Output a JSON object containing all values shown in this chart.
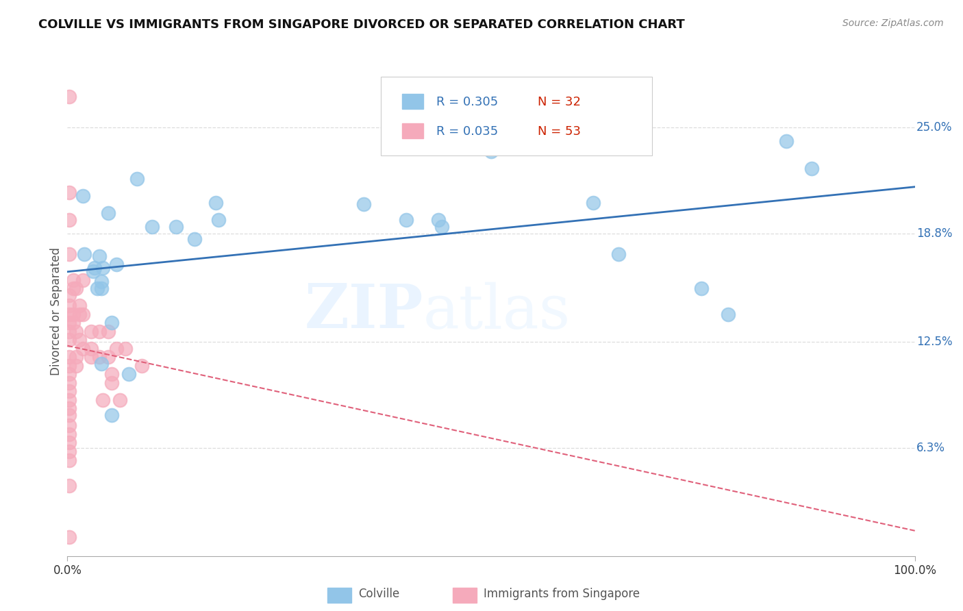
{
  "title": "COLVILLE VS IMMIGRANTS FROM SINGAPORE DIVORCED OR SEPARATED CORRELATION CHART",
  "source": "Source: ZipAtlas.com",
  "ylabel": "Divorced or Separated",
  "xlim": [
    0,
    1.0
  ],
  "ylim": [
    0,
    0.285
  ],
  "yticks": [
    0.063,
    0.125,
    0.188,
    0.25
  ],
  "ytick_labels": [
    "6.3%",
    "12.5%",
    "18.8%",
    "25.0%"
  ],
  "blue_color": "#92C5E8",
  "pink_color": "#F5AABB",
  "blue_line_color": "#3371B5",
  "pink_line_color": "#E0607A",
  "watermark_zip": "ZIP",
  "watermark_atlas": "atlas",
  "legend_blue_r": "R = 0.305",
  "legend_blue_n": "N = 32",
  "legend_pink_r": "R = 0.035",
  "legend_pink_n": "N = 53",
  "label_colville": "Colville",
  "label_singapore": "Immigrants from Singapore",
  "blue_points_x": [
    0.018,
    0.048,
    0.082,
    0.1,
    0.128,
    0.02,
    0.038,
    0.042,
    0.058,
    0.04,
    0.04,
    0.052,
    0.15,
    0.175,
    0.178,
    0.35,
    0.4,
    0.438,
    0.442,
    0.5,
    0.62,
    0.65,
    0.748,
    0.78,
    0.848,
    0.878,
    0.035,
    0.04,
    0.052,
    0.03,
    0.032,
    0.072
  ],
  "blue_points_y": [
    0.21,
    0.2,
    0.22,
    0.192,
    0.192,
    0.176,
    0.175,
    0.168,
    0.17,
    0.16,
    0.156,
    0.136,
    0.185,
    0.206,
    0.196,
    0.205,
    0.196,
    0.196,
    0.192,
    0.236,
    0.206,
    0.176,
    0.156,
    0.141,
    0.242,
    0.226,
    0.156,
    0.112,
    0.082,
    0.166,
    0.168,
    0.106
  ],
  "pink_points_x": [
    0.002,
    0.002,
    0.002,
    0.002,
    0.002,
    0.002,
    0.002,
    0.002,
    0.002,
    0.002,
    0.002,
    0.002,
    0.002,
    0.002,
    0.002,
    0.002,
    0.002,
    0.002,
    0.002,
    0.002,
    0.002,
    0.002,
    0.002,
    0.002,
    0.002,
    0.007,
    0.007,
    0.007,
    0.007,
    0.01,
    0.01,
    0.01,
    0.01,
    0.014,
    0.014,
    0.014,
    0.018,
    0.018,
    0.018,
    0.028,
    0.028,
    0.028,
    0.038,
    0.038,
    0.042,
    0.048,
    0.048,
    0.052,
    0.052,
    0.058,
    0.062,
    0.068,
    0.088
  ],
  "pink_points_y": [
    0.268,
    0.212,
    0.196,
    0.176,
    0.152,
    0.146,
    0.141,
    0.136,
    0.131,
    0.126,
    0.116,
    0.111,
    0.106,
    0.101,
    0.096,
    0.091,
    0.086,
    0.082,
    0.076,
    0.071,
    0.066,
    0.061,
    0.056,
    0.041,
    0.011,
    0.161,
    0.156,
    0.141,
    0.136,
    0.156,
    0.131,
    0.116,
    0.111,
    0.146,
    0.141,
    0.126,
    0.161,
    0.141,
    0.121,
    0.131,
    0.121,
    0.116,
    0.131,
    0.116,
    0.091,
    0.131,
    0.116,
    0.106,
    0.101,
    0.121,
    0.091,
    0.121,
    0.111
  ]
}
